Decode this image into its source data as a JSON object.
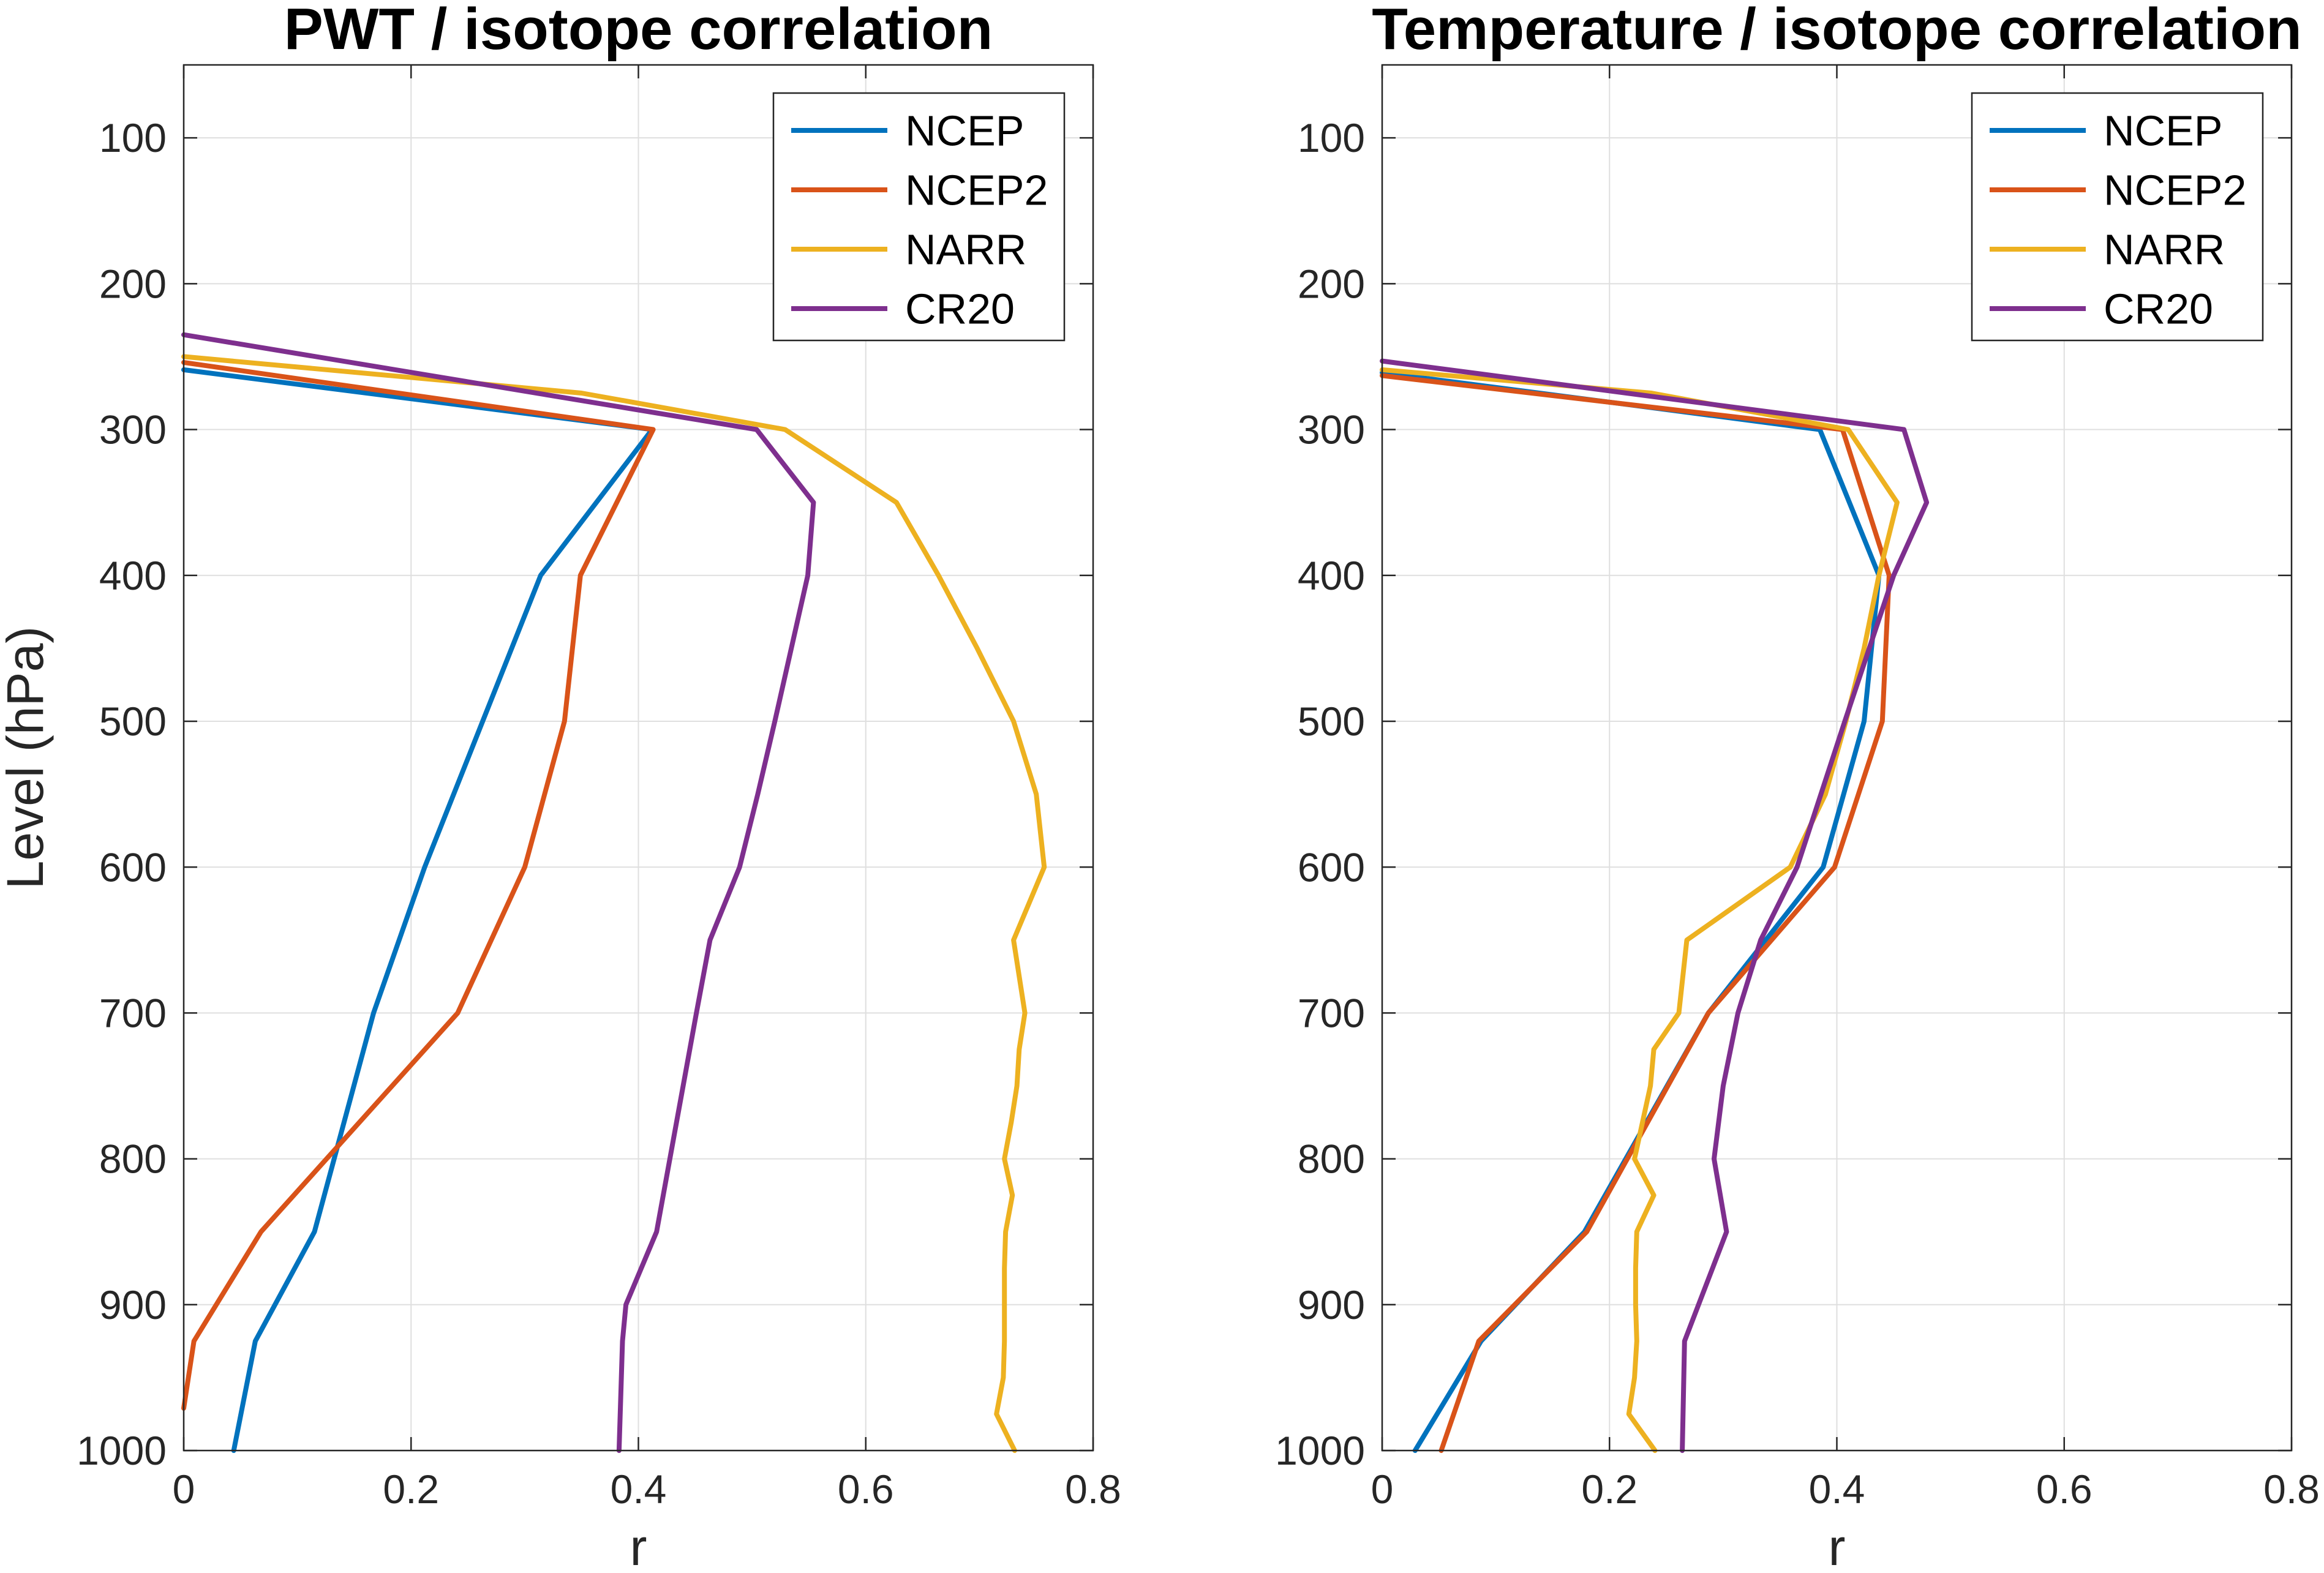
{
  "chart_data": [
    {
      "type": "line",
      "title": "PWT / isotope correlation",
      "xlabel": "r",
      "ylabel": "Level (hPa)",
      "xlim": [
        0,
        0.8
      ],
      "ylim": [
        50,
        1000
      ],
      "y_reversed": true,
      "xticks": [
        "0",
        "0.2",
        "0.4",
        "0.6",
        "0.8"
      ],
      "yticks": [
        "100",
        "200",
        "300",
        "400",
        "500",
        "600",
        "700",
        "800",
        "900",
        "1000"
      ],
      "grid": true,
      "legend_position": "top-right",
      "series": [
        {
          "name": "NCEP",
          "color": "#0072BD",
          "x": [
            0,
            0.412,
            0.314,
            0.263,
            0.212,
            0.167,
            0.115,
            0.063,
            0.044
          ],
          "y": [
            259,
            300,
            400,
            500,
            600,
            700,
            850,
            925,
            1000
          ]
        },
        {
          "name": "NCEP2",
          "color": "#D95319",
          "x": [
            0,
            0.413,
            0.349,
            0.335,
            0.3,
            0.241,
            0.068,
            0.009,
            0
          ],
          "y": [
            254,
            300,
            400,
            500,
            600,
            700,
            850,
            925,
            971
          ]
        },
        {
          "name": "NARR",
          "color": "#EDB120",
          "x": [
            0,
            0.35,
            0.529,
            0.627,
            0.664,
            0.698,
            0.73,
            0.75,
            0.757,
            0.73,
            0.74,
            0.735,
            0.733,
            0.728,
            0.722,
            0.729,
            0.723,
            0.722,
            0.722,
            0.722,
            0.721,
            0.715,
            0.731
          ],
          "y": [
            250,
            275,
            300,
            350,
            400,
            450,
            500,
            550,
            600,
            650,
            700,
            725,
            750,
            775,
            800,
            825,
            850,
            875,
            900,
            925,
            950,
            975,
            1000
          ]
        },
        {
          "name": "CR20",
          "color": "#7E2F8E",
          "x": [
            0,
            0.504,
            0.554,
            0.549,
            0.52,
            0.505,
            0.489,
            0.463,
            0.451,
            0.416,
            0.389,
            0.386,
            0.383
          ],
          "y": [
            235,
            300,
            350,
            400,
            500,
            550,
            600,
            650,
            700,
            850,
            900,
            925,
            1000
          ]
        }
      ]
    },
    {
      "type": "line",
      "title": "Temperature / isotope correlation",
      "xlabel": "r",
      "xlim": [
        0,
        0.8
      ],
      "ylim": [
        50,
        1000
      ],
      "y_reversed": true,
      "xticks": [
        "0",
        "0.2",
        "0.4",
        "0.6",
        "0.8"
      ],
      "yticks": [
        "100",
        "200",
        "300",
        "400",
        "500",
        "600",
        "700",
        "800",
        "900",
        "1000"
      ],
      "grid": true,
      "legend_position": "top-right",
      "series": [
        {
          "name": "NCEP",
          "color": "#0072BD",
          "x": [
            0,
            0.385,
            0.437,
            0.424,
            0.388,
            0.287,
            0.178,
            0.087,
            0.029
          ],
          "y": [
            261,
            300,
            400,
            500,
            600,
            700,
            850,
            925,
            1000
          ]
        },
        {
          "name": "NCEP2",
          "color": "#D95319",
          "x": [
            0,
            0.405,
            0.446,
            0.44,
            0.398,
            0.287,
            0.18,
            0.085,
            0.052
          ],
          "y": [
            263,
            300,
            400,
            500,
            600,
            700,
            850,
            925,
            1000
          ]
        },
        {
          "name": "NARR",
          "color": "#EDB120",
          "x": [
            0,
            0.237,
            0.41,
            0.453,
            0.437,
            0.424,
            0.408,
            0.39,
            0.359,
            0.268,
            0.261,
            0.239,
            0.236,
            0.229,
            0.222,
            0.239,
            0.224,
            0.223,
            0.223,
            0.224,
            0.222,
            0.217,
            0.24
          ],
          "y": [
            259,
            275,
            300,
            350,
            400,
            450,
            500,
            550,
            600,
            650,
            700,
            725,
            750,
            775,
            800,
            825,
            850,
            875,
            900,
            925,
            950,
            975,
            1000
          ]
        },
        {
          "name": "CR20",
          "color": "#7E2F8E",
          "x": [
            0,
            0.459,
            0.479,
            0.45,
            0.407,
            0.365,
            0.333,
            0.313,
            0.3,
            0.292,
            0.303,
            0.266,
            0.264
          ],
          "y": [
            253,
            300,
            350,
            400,
            500,
            600,
            650,
            700,
            750,
            800,
            850,
            925,
            1000
          ]
        }
      ]
    }
  ]
}
